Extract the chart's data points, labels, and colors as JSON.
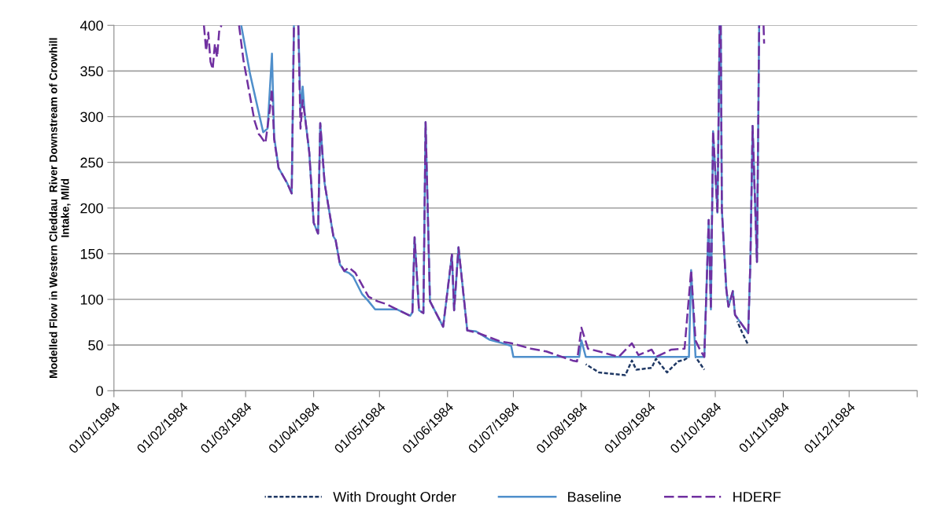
{
  "chart_data": {
    "type": "line",
    "ylabel": "Modelled Flow in Western Cleddau  River Downstream of Crowhill\nIntake, Ml/d",
    "xlim": [
      "1984-01-01",
      "1985-01-01"
    ],
    "xticks": [
      {
        "value": "1984-01-01",
        "label": "01/01/1984"
      },
      {
        "value": "1984-02-01",
        "label": "01/02/1984"
      },
      {
        "value": "1984-03-01",
        "label": "01/03/1984"
      },
      {
        "value": "1984-04-01",
        "label": "01/04/1984"
      },
      {
        "value": "1984-05-01",
        "label": "01/05/1984"
      },
      {
        "value": "1984-06-01",
        "label": "01/06/1984"
      },
      {
        "value": "1984-07-01",
        "label": "01/07/1984"
      },
      {
        "value": "1984-08-01",
        "label": "01/08/1984"
      },
      {
        "value": "1984-09-01",
        "label": "01/09/1984"
      },
      {
        "value": "1984-10-01",
        "label": "01/10/1984"
      },
      {
        "value": "1984-11-01",
        "label": "01/11/1984"
      },
      {
        "value": "1984-12-01",
        "label": "01/12/1984"
      },
      {
        "value": "1985-01-01",
        "label": null
      }
    ],
    "ylim": [
      0,
      400
    ],
    "yticks": [
      0,
      50,
      100,
      150,
      200,
      250,
      300,
      350,
      400
    ],
    "grid": "y",
    "legend": "bottom",
    "marker": "none",
    "series": [
      {
        "name": "With Drought Order",
        "color": "#1f3864",
        "line_style": "dotted",
        "x": [
          "1984-08-03",
          "1984-08-09",
          "1984-08-21",
          "1984-08-24",
          "1984-08-26",
          "1984-09-02",
          "1984-09-04",
          "1984-09-09",
          "1984-09-14",
          "1984-09-17",
          "1984-09-19",
          "1984-09-20",
          "1984-09-22",
          "1984-09-26",
          "1984-10-03",
          "1984-10-11",
          "1984-10-13",
          "1984-10-16"
        ],
        "values": [
          29,
          20,
          17,
          33,
          23,
          25,
          35,
          20,
          32,
          34,
          37,
          null,
          37,
          23,
          null,
          76,
          65,
          50
        ]
      },
      {
        "name": "Baseline",
        "color": "#4f8fcb",
        "line_style": "solid",
        "x": [
          "1984-02-28",
          "1984-03-03",
          "1984-03-09",
          "1984-03-11",
          "1984-03-13",
          "1984-03-14",
          "1984-03-16",
          "1984-03-20",
          "1984-03-22",
          "1984-03-23",
          "1984-03-24",
          "1984-03-25",
          "1984-03-26",
          "1984-03-27",
          "1984-03-28",
          "1984-03-30",
          "1984-04-01",
          "1984-04-03",
          "1984-04-04",
          "1984-04-06",
          "1984-04-10",
          "1984-04-11",
          "1984-04-13",
          "1984-04-14",
          "1984-04-15",
          "1984-04-17",
          "1984-04-19",
          "1984-04-23",
          "1984-04-26",
          "1984-04-29",
          "1984-05-09",
          "1984-05-15",
          "1984-05-16",
          "1984-05-17",
          "1984-05-19",
          "1984-05-21",
          "1984-05-22",
          "1984-05-24",
          "1984-05-30",
          "1984-06-03",
          "1984-06-04",
          "1984-06-06",
          "1984-06-10",
          "1984-06-14",
          "1984-06-20",
          "1984-06-26",
          "1984-06-30",
          "1984-07-01",
          "1984-07-31",
          "1984-08-01",
          "1984-08-03",
          "1984-09-19",
          "1984-09-20",
          "1984-09-22",
          "1984-09-26",
          "1984-09-28",
          "1984-09-29",
          "1984-09-30",
          "1984-10-02",
          "1984-10-03",
          "1984-10-03T06:00",
          "1984-10-03T12:00",
          "1984-10-04",
          "1984-10-06",
          "1984-10-07",
          "1984-10-09",
          "1984-10-10",
          "1984-10-16",
          "1984-10-17",
          "1984-10-18",
          "1984-10-20",
          "1984-10-21"
        ],
        "values": [
          400,
          347,
          283,
          287,
          369,
          278,
          244,
          227,
          216,
          400,
          null,
          400,
          307,
          333,
          301,
          261,
          184,
          172,
          293,
          227,
          169,
          165,
          138,
          135,
          131,
          129,
          125,
          106,
          98,
          89,
          89,
          82,
          86,
          168,
          88,
          85,
          294,
          98,
          70,
          149,
          88,
          157,
          66,
          65,
          56,
          52,
          49,
          37,
          37,
          55,
          37,
          37,
          132,
          37,
          37,
          187,
          89,
          284,
          195,
          400,
          null,
          400,
          198,
          112,
          92,
          109,
          83,
          63,
          141,
          290,
          141,
          400
        ]
      },
      {
        "name": "HDERF",
        "color": "#7030a0",
        "line_style": "dashed",
        "x": [
          "1984-02-11",
          "1984-02-12",
          "1984-02-13",
          "1984-02-14",
          "1984-02-15",
          "1984-02-16",
          "1984-02-17",
          "1984-02-18",
          "1984-02-19",
          "1984-02-20",
          "1984-02-27",
          "1984-02-29",
          "1984-03-05",
          "1984-03-07",
          "1984-03-08",
          "1984-03-10",
          "1984-03-12",
          "1984-03-13",
          "1984-03-14",
          "1984-03-16",
          "1984-03-20",
          "1984-03-22",
          "1984-03-23",
          "1984-03-24",
          "1984-03-25",
          "1984-03-26",
          "1984-03-27",
          "1984-03-28",
          "1984-03-30",
          "1984-04-01",
          "1984-04-03",
          "1984-04-04",
          "1984-04-06",
          "1984-04-10",
          "1984-04-11",
          "1984-04-13",
          "1984-04-14",
          "1984-04-15",
          "1984-04-17",
          "1984-04-19",
          "1984-04-20",
          "1984-04-23",
          "1984-04-26",
          "1984-04-30",
          "1984-05-04",
          "1984-05-09",
          "1984-05-15",
          "1984-05-16",
          "1984-05-17",
          "1984-05-19",
          "1984-05-21",
          "1984-05-22",
          "1984-05-24",
          "1984-05-30",
          "1984-06-03",
          "1984-06-04",
          "1984-06-06",
          "1984-06-10",
          "1984-06-15",
          "1984-06-25",
          "1984-06-30",
          "1984-07-09",
          "1984-07-16",
          "1984-07-28",
          "1984-07-30",
          "1984-08-01",
          "1984-08-04",
          "1984-08-09",
          "1984-08-18",
          "1984-08-24",
          "1984-08-27",
          "1984-09-02",
          "1984-09-04",
          "1984-09-11",
          "1984-09-17",
          "1984-09-20",
          "1984-09-22",
          "1984-09-24",
          "1984-09-26",
          "1984-09-28",
          "1984-09-29",
          "1984-09-30",
          "1984-10-02",
          "1984-10-03",
          "1984-10-03T06:00",
          "1984-10-03T12:00",
          "1984-10-04",
          "1984-10-06",
          "1984-10-07",
          "1984-10-09",
          "1984-10-10",
          "1984-10-16",
          "1984-10-17",
          "1984-10-18",
          "1984-10-20",
          "1984-10-21",
          "1984-10-22",
          "1984-10-23",
          "1984-10-23T06:00"
        ],
        "values": [
          400,
          372,
          392,
          360,
          352,
          380,
          365,
          395,
          400,
          null,
          400,
          362,
          296,
          281,
          278,
          271,
          307,
          330,
          275,
          244,
          227,
          216,
          400,
          null,
          400,
          287,
          318,
          301,
          261,
          184,
          172,
          293,
          227,
          169,
          165,
          138,
          135,
          131,
          135,
          131,
          129,
          116,
          103,
          98,
          95,
          89,
          82,
          86,
          168,
          88,
          85,
          294,
          98,
          70,
          149,
          88,
          157,
          66,
          63,
          54,
          52,
          46,
          43,
          33,
          32,
          69,
          46,
          43,
          37,
          52,
          39,
          45,
          37,
          45,
          46,
          132,
          55,
          45,
          37,
          187,
          89,
          284,
          195,
          400,
          null,
          400,
          198,
          112,
          92,
          109,
          83,
          63,
          141,
          290,
          141,
          400,
          null,
          400,
          380
        ]
      }
    ]
  }
}
